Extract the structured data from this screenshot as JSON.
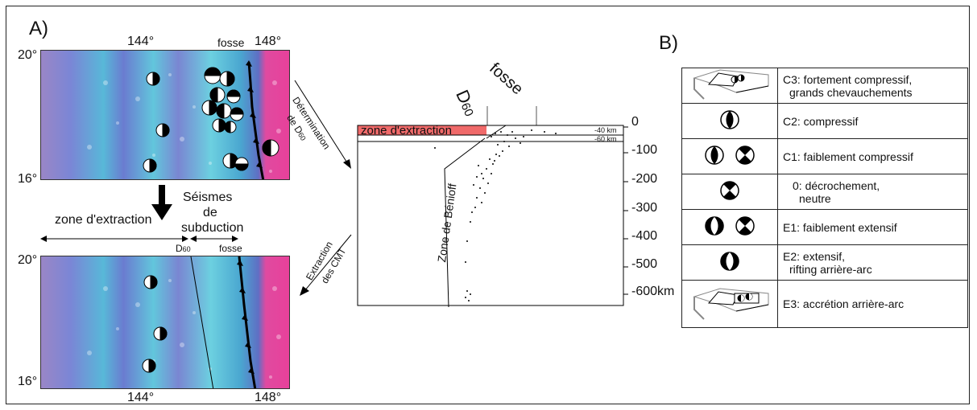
{
  "panel_a": {
    "label": "A)",
    "top_map": {
      "lon_144": "144°",
      "lon_148": "148°",
      "trench": "fosse",
      "lat_20": "20°",
      "lat_16": "16°"
    },
    "middle": {
      "extraction_zone": "zone d'extraction",
      "subduction_line1": "Séismes",
      "subduction_line2": "de",
      "subduction_line3": "subduction",
      "d_label": "D",
      "d_sub": "60",
      "trench": "fosse"
    },
    "bottom_map": {
      "lat_20": "20°",
      "lat_16": "16°",
      "lon_144": "144°",
      "lon_148": "148°"
    },
    "arrow_determination_line1": "Détermination",
    "arrow_determination_line2": "de D",
    "arrow_determination_sub": "60",
    "arrow_extraction_line1": "Extraction",
    "arrow_extraction_line2": "des CMT"
  },
  "section": {
    "d_label": "D",
    "d_sub": "60",
    "trench": "fosse",
    "extraction_zone": "zone d'extraction",
    "line_40": "-40 km",
    "line_60": "-60 km",
    "benioff": "Zone de Bénioff",
    "depth_ticks": [
      "0",
      "-100",
      "-200",
      "-300",
      "-400",
      "-500",
      "-600km"
    ]
  },
  "panel_b": {
    "label": "B)",
    "rows": [
      {
        "icon": "block-diagram-compression-icon",
        "line1": "C3: fortement compressif,",
        "line2": "grands chevauchements"
      },
      {
        "icon": "beachball-compressive-icon",
        "line1": "C2: compressif",
        "line2": ""
      },
      {
        "icon": "beachball-weak-compressive-icon",
        "line1": "C1: faiblement compressif",
        "line2": ""
      },
      {
        "icon": "beachball-strike-slip-icon",
        "line1": "0: décrochement,",
        "line2": "neutre"
      },
      {
        "icon": "beachball-weak-extensive-icon",
        "line1": "E1: faiblement extensif",
        "line2": ""
      },
      {
        "icon": "beachball-extensive-icon",
        "line1": "E2: extensif,",
        "line2": "rifting arrière-arc"
      },
      {
        "icon": "block-diagram-accretion-icon",
        "line1": "E3: accrétion arrière-arc",
        "line2": ""
      }
    ]
  },
  "colors": {
    "map_purple": "#8c78c8",
    "map_cyan": "#64c8dc",
    "map_magenta": "#e0409c",
    "extraction_red": "#f06a6a"
  }
}
